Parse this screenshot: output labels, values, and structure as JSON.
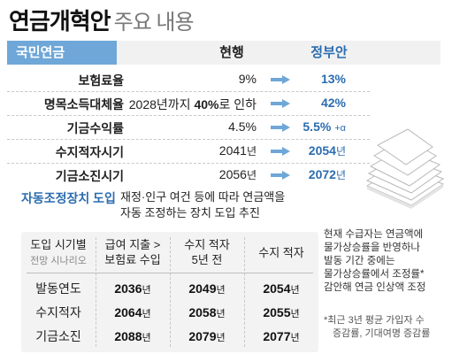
{
  "title": {
    "main": "연금개혁안",
    "sub": "주요 내용"
  },
  "header": {
    "tag": "국민연금",
    "current": "현행",
    "government": "정부안"
  },
  "rows": [
    {
      "label": "보험료율",
      "current": "9%",
      "government": "13%"
    },
    {
      "label": "명목소득대체율",
      "current_prefix": "2028년까지 ",
      "current_bold": "40%",
      "current_suffix": "로 인하",
      "government": "42%"
    },
    {
      "label": "기금수익률",
      "current": "4.5%",
      "government_main": "5.5%",
      "government_small": "+α"
    },
    {
      "label": "수지적자시기",
      "current_main": "2041",
      "current_unit": "년",
      "government_main": "2054",
      "government_unit": "년"
    },
    {
      "label": "기금소진시기",
      "current_main": "2056",
      "current_unit": "년",
      "government_main": "2072",
      "government_unit": "년"
    }
  ],
  "auto_adjust": {
    "label": "자동조정장치 도입",
    "desc_line1": "재정·인구 여건 등에 따라 연금액을",
    "desc_line2": "자동 조정하는 장치 도입 추진"
  },
  "table": {
    "headers": {
      "col0_line1": "도입 시기별",
      "col0_line2": "전망 시나리오",
      "col1_line1": "급여 지출 >",
      "col1_line2": "보험료 수입",
      "col2_line1": "수지 적자",
      "col2_line2": "5년 전",
      "col3": "수지 적자"
    },
    "unit": "년",
    "rows": [
      {
        "label": "발동연도",
        "v1": "2036",
        "v2": "2049",
        "v3": "2054"
      },
      {
        "label": "수지적자",
        "v1": "2064",
        "v2": "2058",
        "v3": "2055"
      },
      {
        "label": "기금소진",
        "v1": "2088",
        "v2": "2079",
        "v3": "2077"
      }
    ]
  },
  "note": {
    "line1": "현재 수급자는 연금액에",
    "line2": "물가상승률을 반영하나",
    "line3": "발동 기간 중에는",
    "line4": "물가상승률에서 조정률*",
    "line5": "감안해 연금 인상액 조정"
  },
  "footnote": {
    "line1": "*최근 3년 평균 가입자 수",
    "line2": "증감률, 기대여명 증감률"
  },
  "colors": {
    "accent": "#6ea7d8",
    "blue_text": "#2b6cb0",
    "header_bg": "#f1f1f1",
    "table_bg": "#f3f3f3"
  },
  "icons": [
    "arrow-right-icon",
    "paper-stack-icon"
  ]
}
